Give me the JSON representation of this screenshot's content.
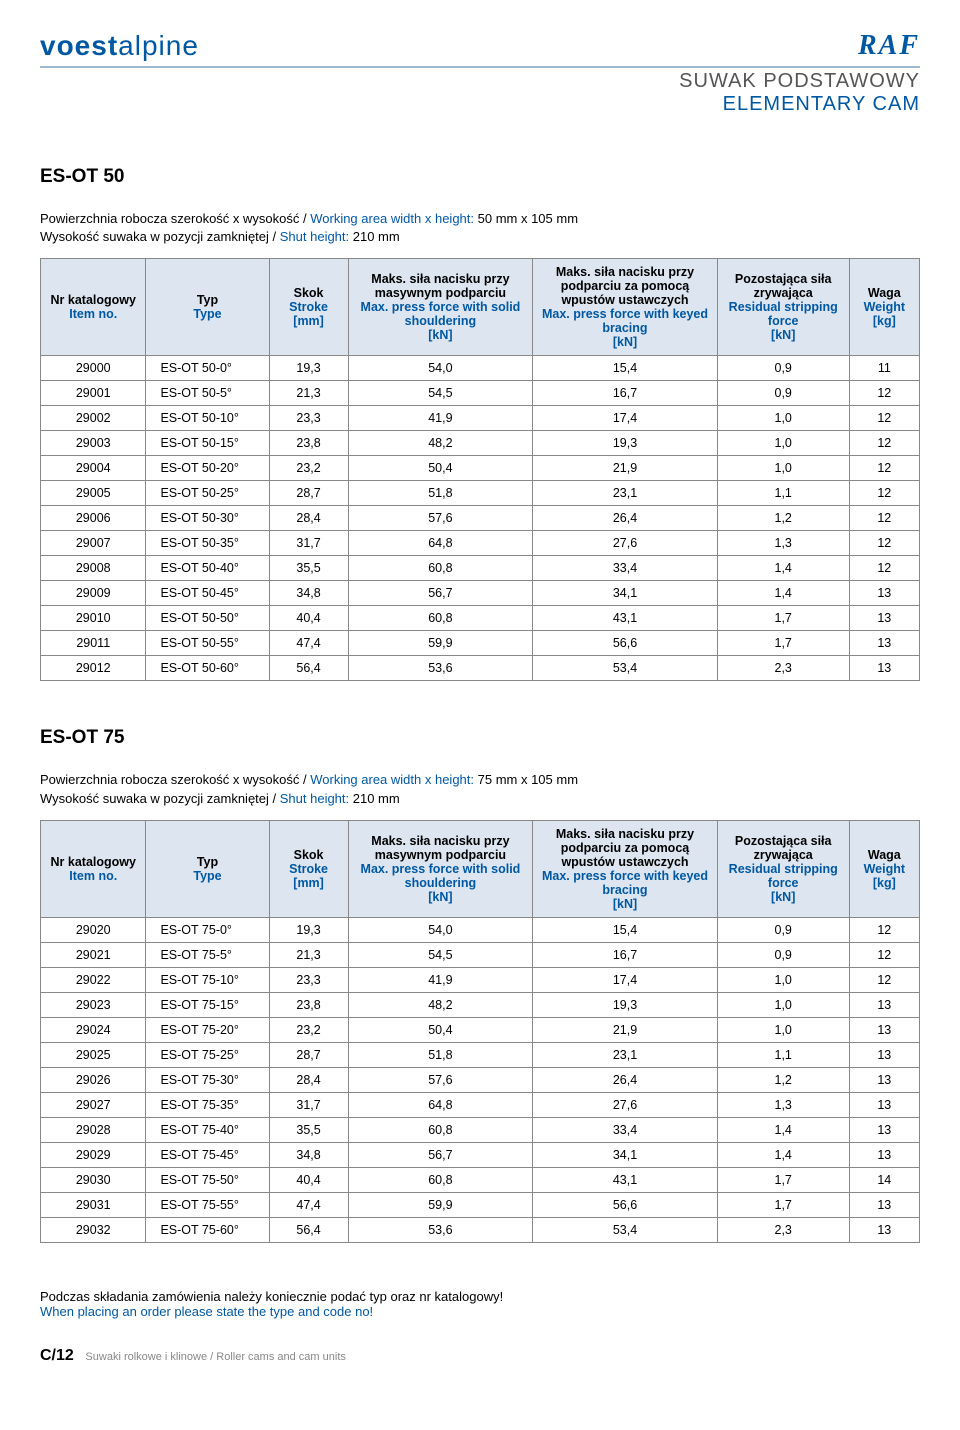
{
  "logos": {
    "left_bold": "voest",
    "left_thin": "alpine",
    "right": "RAF"
  },
  "subtitle": {
    "pl": "SUWAK PODSTAWOWY",
    "en": "ELEMENTARY CAM"
  },
  "columns": [
    {
      "pl": "Nr katalogowy",
      "en": "Item no."
    },
    {
      "pl": "Typ",
      "en": "Type"
    },
    {
      "pl": "Skok",
      "en": "Stroke\n[mm]"
    },
    {
      "pl": "Maks. siła nacisku przy masywnym podparciu",
      "en": "Max. press force with solid shouldering\n[kN]"
    },
    {
      "pl": "Maks. siła nacisku przy podparciu za pomocą wpustów ustawczych",
      "en": "Max. press force with keyed bracing\n[kN]"
    },
    {
      "pl": "Pozostająca siła zrywająca",
      "en": "Residual stripping force\n[kN]"
    },
    {
      "pl": "Waga",
      "en": "Weight\n[kg]"
    }
  ],
  "sections": [
    {
      "title": "ES-OT 50",
      "intro": {
        "line1_pl": "Powierzchnia robocza szerokość x wysokość / ",
        "line1_en": "Working area width x height:",
        "line1_val": "  50 mm x 105 mm",
        "line2_pl": "Wysokość suwaka w pozycji zamkniętej / ",
        "line2_en": "Shut height:",
        "line2_val": "   210 mm"
      },
      "rows": [
        [
          "29000",
          "ES-OT 50-0°",
          "19,3",
          "54,0",
          "15,4",
          "0,9",
          "11"
        ],
        [
          "29001",
          "ES-OT 50-5°",
          "21,3",
          "54,5",
          "16,7",
          "0,9",
          "12"
        ],
        [
          "29002",
          "ES-OT 50-10°",
          "23,3",
          "41,9",
          "17,4",
          "1,0",
          "12"
        ],
        [
          "29003",
          "ES-OT 50-15°",
          "23,8",
          "48,2",
          "19,3",
          "1,0",
          "12"
        ],
        [
          "29004",
          "ES-OT 50-20°",
          "23,2",
          "50,4",
          "21,9",
          "1,0",
          "12"
        ],
        [
          "29005",
          "ES-OT 50-25°",
          "28,7",
          "51,8",
          "23,1",
          "1,1",
          "12"
        ],
        [
          "29006",
          "ES-OT 50-30°",
          "28,4",
          "57,6",
          "26,4",
          "1,2",
          "12"
        ],
        [
          "29007",
          "ES-OT 50-35°",
          "31,7",
          "64,8",
          "27,6",
          "1,3",
          "12"
        ],
        [
          "29008",
          "ES-OT 50-40°",
          "35,5",
          "60,8",
          "33,4",
          "1,4",
          "12"
        ],
        [
          "29009",
          "ES-OT 50-45°",
          "34,8",
          "56,7",
          "34,1",
          "1,4",
          "13"
        ],
        [
          "29010",
          "ES-OT 50-50°",
          "40,4",
          "60,8",
          "43,1",
          "1,7",
          "13"
        ],
        [
          "29011",
          "ES-OT 50-55°",
          "47,4",
          "59,9",
          "56,6",
          "1,7",
          "13"
        ],
        [
          "29012",
          "ES-OT 50-60°",
          "56,4",
          "53,6",
          "53,4",
          "2,3",
          "13"
        ]
      ]
    },
    {
      "title": "ES-OT 75",
      "intro": {
        "line1_pl": "Powierzchnia robocza szerokość x wysokość / ",
        "line1_en": "Working area width x height:",
        "line1_val": "  75 mm x 105 mm",
        "line2_pl": "Wysokość suwaka w pozycji zamkniętej / ",
        "line2_en": "Shut height:",
        "line2_val": "   210 mm"
      },
      "rows": [
        [
          "29020",
          "ES-OT 75-0°",
          "19,3",
          "54,0",
          "15,4",
          "0,9",
          "12"
        ],
        [
          "29021",
          "ES-OT 75-5°",
          "21,3",
          "54,5",
          "16,7",
          "0,9",
          "12"
        ],
        [
          "29022",
          "ES-OT 75-10°",
          "23,3",
          "41,9",
          "17,4",
          "1,0",
          "12"
        ],
        [
          "29023",
          "ES-OT 75-15°",
          "23,8",
          "48,2",
          "19,3",
          "1,0",
          "13"
        ],
        [
          "29024",
          "ES-OT 75-20°",
          "23,2",
          "50,4",
          "21,9",
          "1,0",
          "13"
        ],
        [
          "29025",
          "ES-OT 75-25°",
          "28,7",
          "51,8",
          "23,1",
          "1,1",
          "13"
        ],
        [
          "29026",
          "ES-OT 75-30°",
          "28,4",
          "57,6",
          "26,4",
          "1,2",
          "13"
        ],
        [
          "29027",
          "ES-OT 75-35°",
          "31,7",
          "64,8",
          "27,6",
          "1,3",
          "13"
        ],
        [
          "29028",
          "ES-OT 75-40°",
          "35,5",
          "60,8",
          "33,4",
          "1,4",
          "13"
        ],
        [
          "29029",
          "ES-OT 75-45°",
          "34,8",
          "56,7",
          "34,1",
          "1,4",
          "13"
        ],
        [
          "29030",
          "ES-OT 75-50°",
          "40,4",
          "60,8",
          "43,1",
          "1,7",
          "14"
        ],
        [
          "29031",
          "ES-OT 75-55°",
          "47,4",
          "59,9",
          "56,6",
          "1,7",
          "13"
        ],
        [
          "29032",
          "ES-OT 75-60°",
          "56,4",
          "53,6",
          "53,4",
          "2,3",
          "13"
        ]
      ]
    }
  ],
  "note": {
    "pl": "Podczas składania zamówienia należy koniecznie podać typ oraz nr katalogowy!",
    "en": "When placing an order please state the type and code no!"
  },
  "footer": {
    "pageno": "C/12",
    "text_pl": "Suwaki rolkowe i klinowe / ",
    "text_en": "Roller cams and cam units"
  }
}
